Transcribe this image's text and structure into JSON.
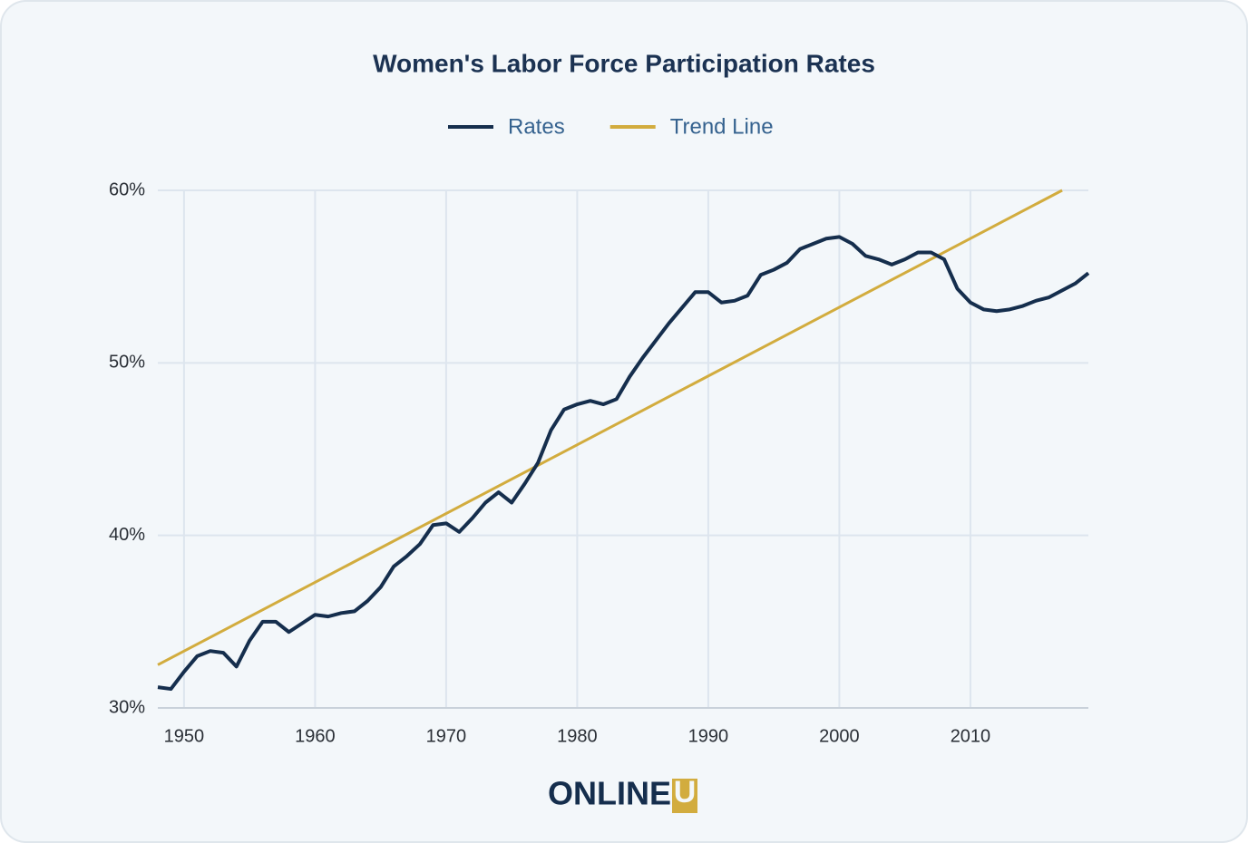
{
  "chart_data": {
    "type": "line",
    "title": "Women's Labor Force Participation Rates",
    "series": [
      {
        "name": "Rates",
        "color": "#152e4d",
        "x": [
          1948,
          1949,
          1950,
          1951,
          1952,
          1953,
          1954,
          1955,
          1956,
          1957,
          1958,
          1959,
          1960,
          1961,
          1962,
          1963,
          1964,
          1965,
          1966,
          1967,
          1968,
          1969,
          1970,
          1971,
          1972,
          1973,
          1974,
          1975,
          1976,
          1977,
          1978,
          1979,
          1980,
          1981,
          1982,
          1983,
          1984,
          1985,
          1986,
          1987,
          1988,
          1989,
          1990,
          1991,
          1992,
          1993,
          1994,
          1995,
          1996,
          1997,
          1998,
          1999,
          2000,
          2001,
          2002,
          2003,
          2004,
          2005,
          2006,
          2007,
          2008,
          2009,
          2010,
          2011,
          2012,
          2013,
          2014,
          2015,
          2016,
          2017,
          2018,
          2019
        ],
        "values": [
          31.2,
          31.1,
          32.1,
          33.0,
          33.3,
          33.2,
          32.4,
          33.9,
          35.0,
          35.0,
          34.4,
          34.9,
          35.4,
          35.3,
          35.5,
          35.6,
          36.2,
          37.0,
          38.2,
          38.8,
          39.5,
          40.6,
          40.7,
          40.2,
          41.0,
          41.9,
          42.5,
          41.9,
          43.0,
          44.2,
          46.1,
          47.3,
          47.6,
          47.8,
          47.6,
          47.9,
          49.2,
          50.3,
          51.3,
          52.3,
          53.2,
          54.1,
          54.1,
          53.5,
          53.6,
          53.9,
          55.1,
          55.4,
          55.8,
          56.6,
          56.9,
          57.2,
          57.3,
          56.9,
          56.2,
          56.0,
          55.7,
          56.0,
          56.4,
          56.4,
          56.0,
          54.3,
          53.5,
          53.1,
          53.0,
          53.1,
          53.3,
          53.6,
          53.8,
          54.2,
          54.6,
          55.2
        ]
      },
      {
        "name": "Trend Line",
        "color": "#d2ac3e",
        "x": [
          1948,
          2017
        ],
        "values": [
          32.5,
          60.0
        ]
      }
    ],
    "xlim": [
      1948,
      2019
    ],
    "xticks": [
      1950,
      1960,
      1970,
      1980,
      1990,
      2000,
      2010
    ],
    "ylim": [
      30,
      60
    ],
    "yticks": [
      {
        "value": 30,
        "label": "30%"
      },
      {
        "value": 40,
        "label": "40%"
      },
      {
        "value": 50,
        "label": "50%"
      },
      {
        "value": 60,
        "label": "60%"
      }
    ],
    "grid": true,
    "legend": "top"
  },
  "logo": {
    "text": "ONLINE",
    "badge": "U"
  }
}
